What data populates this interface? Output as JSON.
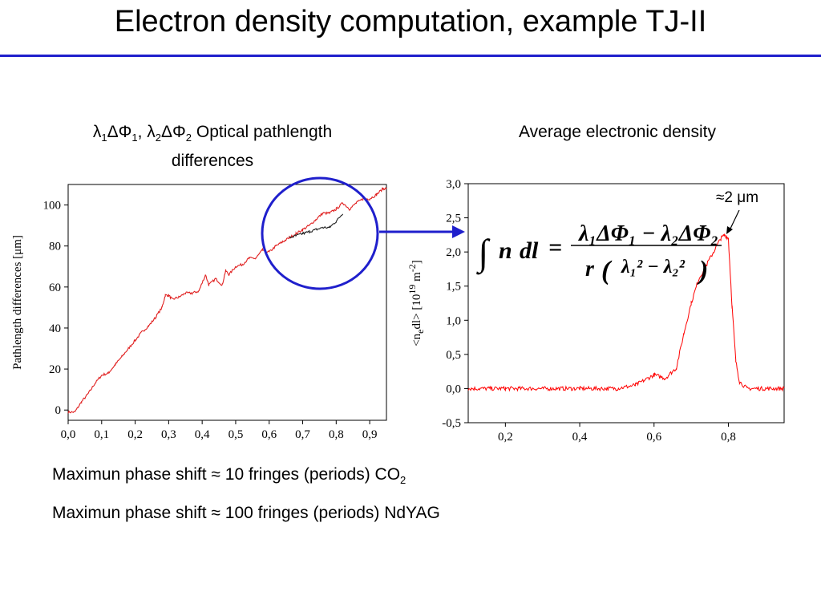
{
  "slide": {
    "title": "Electron density computation, example TJ-II",
    "left_caption_line1": "λ1ΔΦ1, λ2ΔΦ2 Optical pathlength",
    "left_caption_line2": "differences",
    "right_caption": "Average electronic density",
    "note1": "Maximun phase shift ≈ 10 fringes (periods) CO2",
    "note2": "Maximun phase shift ≈ 100 fringes (periods) NdYAG",
    "annotation": "≈2 μm"
  },
  "chart_data": [
    {
      "type": "line",
      "ylabel": "Pathlength differences [μm]",
      "xlim": [
        0.0,
        0.95
      ],
      "ylim": [
        -5,
        110
      ],
      "x_ticks": [
        "0,0",
        "0,1",
        "0,2",
        "0,3",
        "0,4",
        "0,5",
        "0,6",
        "0,7",
        "0,8",
        "0,9"
      ],
      "y_ticks": [
        "0",
        "20",
        "40",
        "60",
        "80",
        "100"
      ],
      "series": [
        {
          "color": "#e02020",
          "x": [
            0.0,
            0.02,
            0.04,
            0.06,
            0.08,
            0.1,
            0.12,
            0.14,
            0.16,
            0.18,
            0.2,
            0.22,
            0.24,
            0.26,
            0.28,
            0.29,
            0.3,
            0.31,
            0.33,
            0.35,
            0.37,
            0.39,
            0.41,
            0.42,
            0.44,
            0.46,
            0.47,
            0.48,
            0.5,
            0.52,
            0.54,
            0.56,
            0.58,
            0.6,
            0.62,
            0.64,
            0.66,
            0.68,
            0.7,
            0.72,
            0.74,
            0.76,
            0.78,
            0.8,
            0.82,
            0.84,
            0.86,
            0.88,
            0.9,
            0.92,
            0.94,
            0.95
          ],
          "y": [
            -1,
            -1,
            4,
            8,
            13,
            17,
            18,
            22,
            26,
            30,
            34,
            38,
            41,
            45,
            50,
            56,
            56,
            54,
            55,
            57,
            57,
            58,
            66,
            61,
            64,
            61,
            68,
            66,
            70,
            71,
            74,
            74,
            78,
            77,
            80,
            82,
            84,
            86,
            88,
            90,
            93,
            96,
            96,
            98,
            101,
            98,
            101,
            103,
            103,
            105,
            108,
            108
          ]
        },
        {
          "color": "#222222",
          "x": [
            0.66,
            0.68,
            0.7,
            0.72,
            0.74,
            0.76,
            0.78,
            0.8,
            0.82
          ],
          "y": [
            84,
            85,
            86,
            87,
            88,
            89,
            89,
            92,
            96
          ]
        }
      ]
    },
    {
      "type": "line",
      "ylabel": "<nedl> [10^19 m^-2]",
      "xlim": [
        0.1,
        0.95
      ],
      "ylim": [
        -0.5,
        3.0
      ],
      "x_ticks": [
        "0,2",
        "0,4",
        "0,6",
        "0,8"
      ],
      "y_ticks": [
        "-0,5",
        "0,0",
        "0,5",
        "1,0",
        "1,5",
        "2,0",
        "2,5",
        "3,0"
      ],
      "series": [
        {
          "color": "#ff0000",
          "x": [
            0.1,
            0.2,
            0.3,
            0.4,
            0.5,
            0.55,
            0.6,
            0.63,
            0.66,
            0.68,
            0.7,
            0.72,
            0.74,
            0.76,
            0.78,
            0.79,
            0.8,
            0.81,
            0.82,
            0.83,
            0.85,
            0.9,
            0.95
          ],
          "y": [
            0.0,
            0.0,
            0.0,
            0.0,
            0.0,
            0.05,
            0.2,
            0.15,
            0.3,
            0.8,
            1.25,
            1.6,
            1.8,
            2.0,
            2.2,
            2.25,
            2.2,
            1.2,
            0.4,
            0.1,
            0.0,
            0.0,
            0.0
          ]
        }
      ]
    }
  ]
}
